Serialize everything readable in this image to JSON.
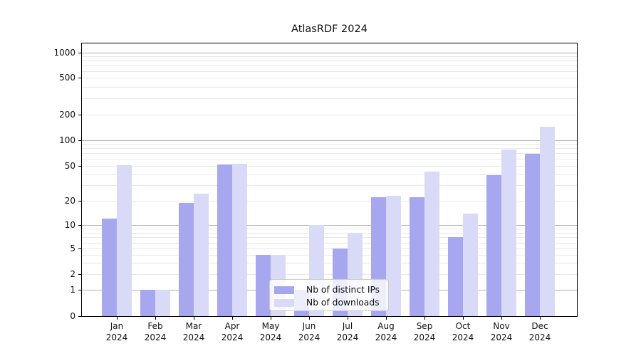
{
  "title": "AtlasRDF 2024",
  "chart_data": {
    "type": "bar",
    "title": "AtlasRDF 2024",
    "categories": [
      "Jan 2024",
      "Feb 2024",
      "Mar 2024",
      "Apr 2024",
      "May 2024",
      "Jun 2024",
      "Jul 2024",
      "Aug 2024",
      "Sep 2024",
      "Oct 2024",
      "Nov 2024",
      "Dec 2024"
    ],
    "series": [
      {
        "name": "Nb of distinct IPs",
        "color": "#a7a7f0",
        "values": [
          12,
          1,
          19,
          52,
          4,
          1,
          5,
          22,
          22,
          7,
          39,
          69
        ]
      },
      {
        "name": "Nb of downloads",
        "color": "#d9d9f8",
        "values": [
          51,
          1,
          24,
          53,
          4,
          10,
          8,
          23,
          43,
          14,
          78,
          145
        ]
      }
    ],
    "xlabel": "",
    "ylabel": "",
    "yscale": "symlog",
    "ylim": [
      0,
      1300
    ],
    "yticks": [
      0,
      1,
      2,
      5,
      10,
      20,
      50,
      100,
      200,
      500,
      1000
    ],
    "grid": true,
    "legend_position": "lower center inside plot"
  },
  "axes": {
    "y_tick_labels": [
      "0",
      "1",
      "2",
      "5",
      "10",
      "20",
      "50",
      "100",
      "200",
      "500",
      "1000"
    ],
    "x_year_line": "2024"
  },
  "gridlines": {
    "major": [
      1,
      10,
      100,
      1000
    ],
    "minor": [
      2,
      3,
      4,
      5,
      6,
      7,
      8,
      9,
      20,
      30,
      40,
      50,
      60,
      70,
      80,
      90,
      200,
      300,
      400,
      500,
      600,
      700,
      800,
      900
    ]
  },
  "y_scale_anchors": [
    [
      0,
      0.0
    ],
    [
      1,
      0.0958
    ],
    [
      2,
      0.154
    ],
    [
      5,
      0.2472
    ],
    [
      10,
      0.3342
    ],
    [
      20,
      0.4222
    ],
    [
      50,
      0.5517
    ],
    [
      100,
      0.6457
    ],
    [
      200,
      0.7389
    ],
    [
      500,
      0.8738
    ],
    [
      1000,
      0.966
    ]
  ],
  "colors": {
    "major_grid": "#b2b2b2",
    "minor_grid": "#e8e8e8",
    "axis": "#000000",
    "background": "#ffffff"
  }
}
